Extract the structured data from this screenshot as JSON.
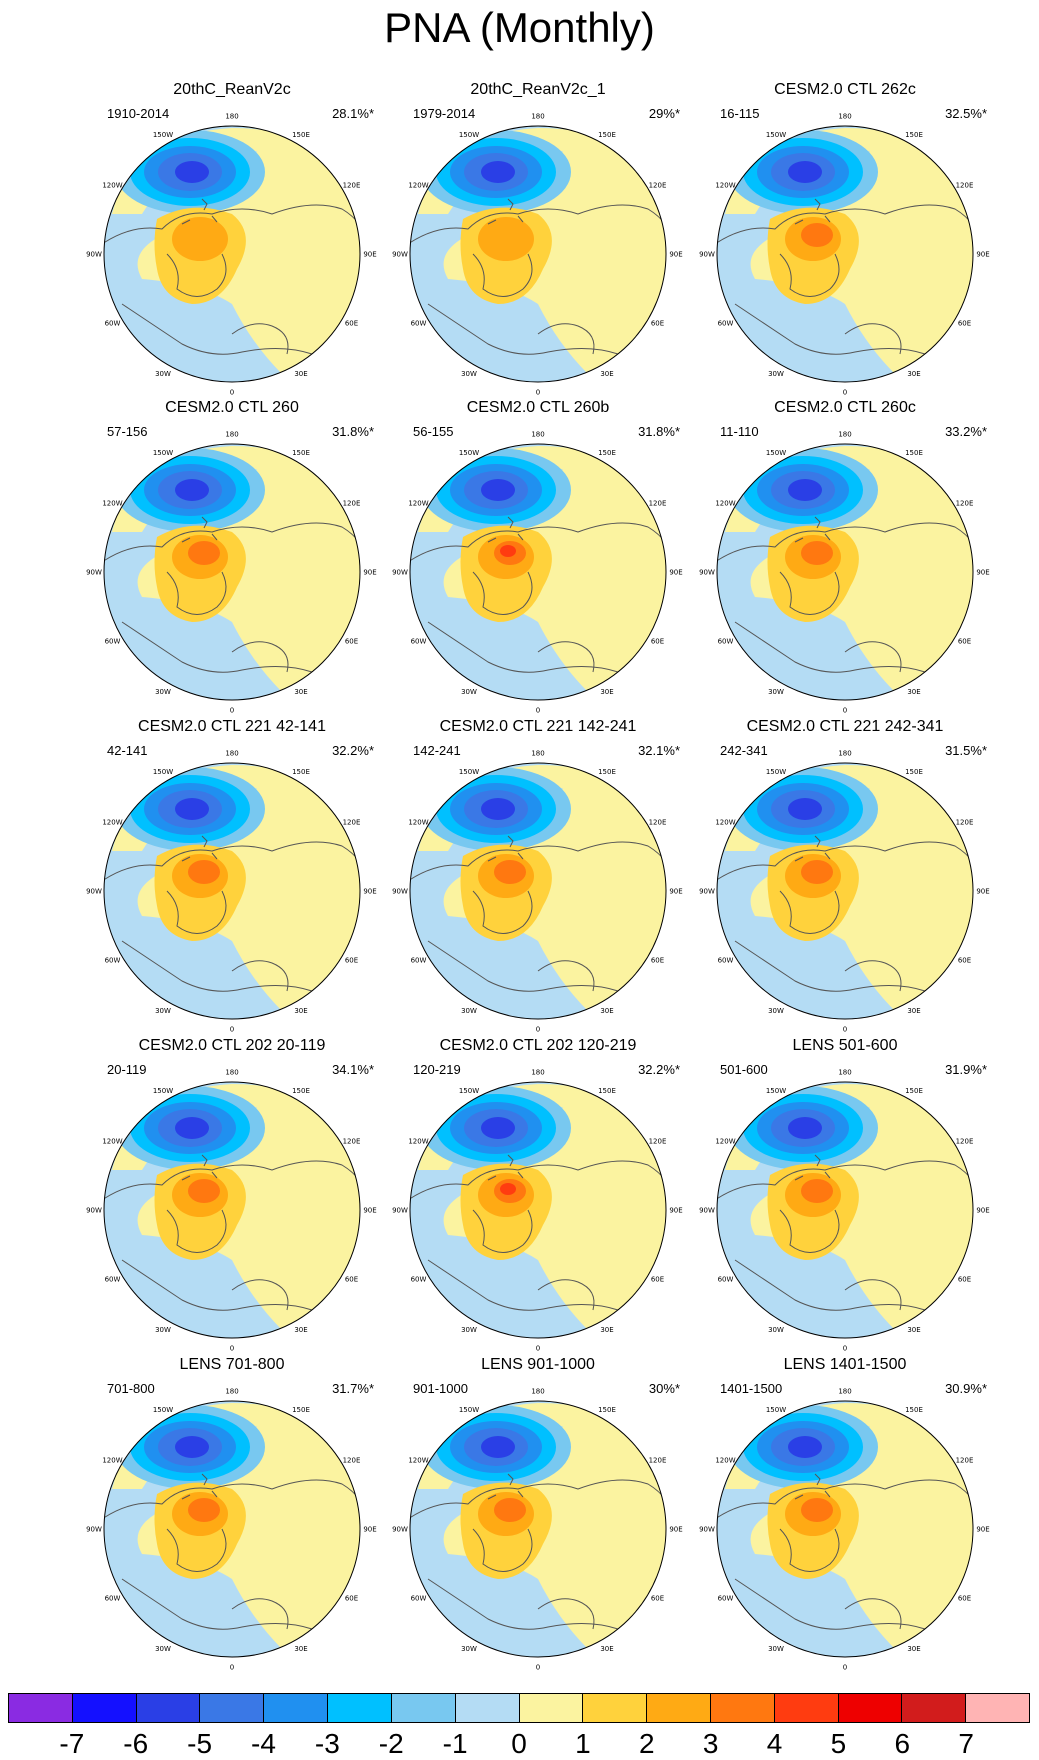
{
  "title": "PNA (Monthly)",
  "longitude_labels": [
    "180",
    "150E",
    "120E",
    "90E",
    "60E",
    "30E",
    "0",
    "30W",
    "60W",
    "90W",
    "120W",
    "150W"
  ],
  "colorbar": {
    "colors": [
      "#8a2be2",
      "#1410ff",
      "#2a3fe6",
      "#3a78e6",
      "#2090f0",
      "#00c0ff",
      "#78c8f0",
      "#b4dcf4",
      "#fbf3a0",
      "#ffd23c",
      "#ffaa14",
      "#ff7810",
      "#ff3c10",
      "#ee0000",
      "#d21c1c",
      "#ffb4b4"
    ],
    "labels": [
      "-7",
      "-6",
      "-5",
      "-4",
      "-3",
      "-2",
      "-1",
      "0",
      "1",
      "2",
      "3",
      "4",
      "5",
      "6",
      "7"
    ]
  },
  "panels": [
    {
      "title": "20thC_ReanV2c",
      "years": "1910-2014",
      "pct": "28.1%*"
    },
    {
      "title": "20thC_ReanV2c_1",
      "years": "1979-2014",
      "pct": "29%*"
    },
    {
      "title": "CESM2.0 CTL 262c",
      "years": "16-115",
      "pct": "32.5%*"
    },
    {
      "title": "CESM2.0 CTL 260",
      "years": "57-156",
      "pct": "31.8%*"
    },
    {
      "title": "CESM2.0 CTL 260b",
      "years": "56-155",
      "pct": "31.8%*"
    },
    {
      "title": "CESM2.0 CTL 260c",
      "years": "11-110",
      "pct": "33.2%*"
    },
    {
      "title": "CESM2.0 CTL 221 42-141",
      "years": "42-141",
      "pct": "32.2%*"
    },
    {
      "title": "CESM2.0 CTL 221 142-241",
      "years": "142-241",
      "pct": "32.1%*"
    },
    {
      "title": "CESM2.0 CTL 221 242-341",
      "years": "242-341",
      "pct": "31.5%*"
    },
    {
      "title": "CESM2.0 CTL 202 20-119",
      "years": "20-119",
      "pct": "34.1%*"
    },
    {
      "title": "CESM2.0 CTL 202 120-219",
      "years": "120-219",
      "pct": "32.2%*"
    },
    {
      "title": "LENS 501-600",
      "years": "501-600",
      "pct": "31.9%*"
    },
    {
      "title": "LENS 701-800",
      "years": "701-800",
      "pct": "31.7%*"
    },
    {
      "title": "LENS 901-1000",
      "years": "901-1000",
      "pct": "30%*"
    },
    {
      "title": "LENS 1401-1500",
      "years": "1401-1500",
      "pct": "30.9%*"
    }
  ]
}
